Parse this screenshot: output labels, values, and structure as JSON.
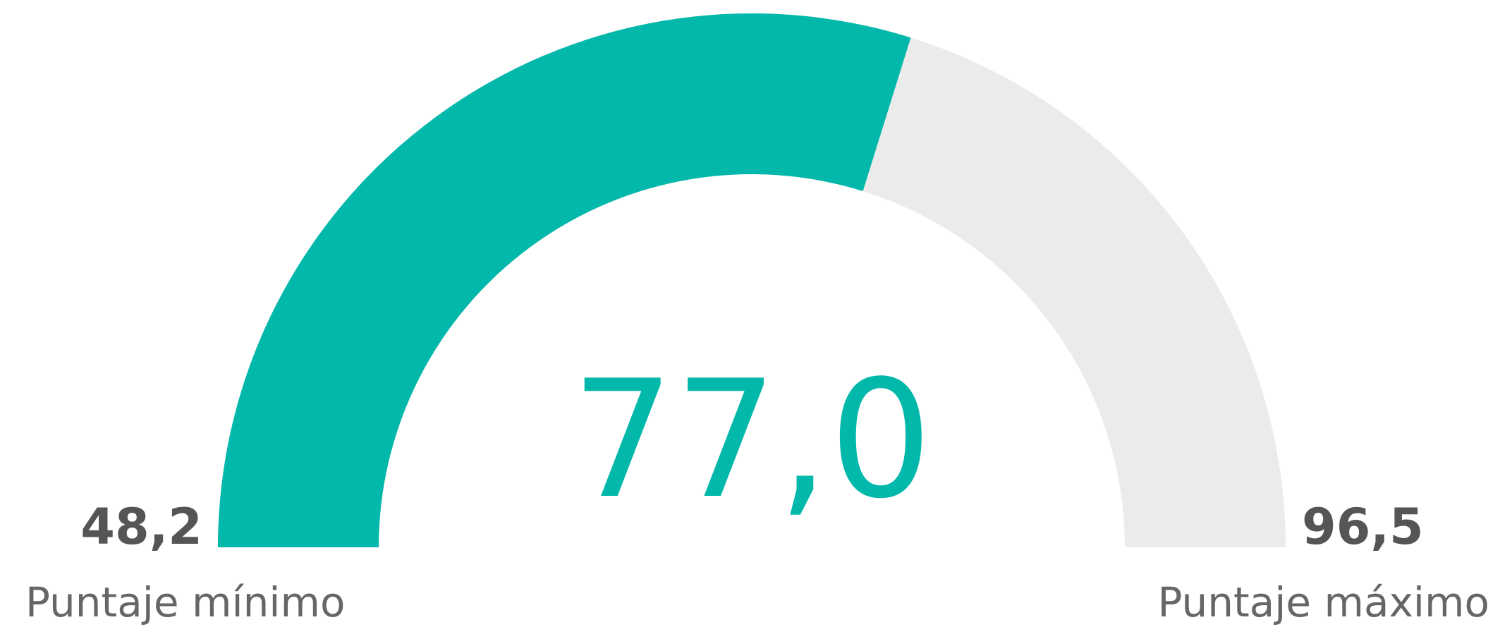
{
  "chart_data": {
    "type": "gauge",
    "value": 77.0,
    "value_label": "77,0",
    "min": {
      "value": 48.2,
      "label": "48,2"
    },
    "max": {
      "value": 96.5,
      "label": "96,5"
    },
    "min_title": "Puntaje mínimo",
    "max_title": "Puntaje máximo",
    "color": "#01b8aa",
    "track_color": "#ebebeb"
  }
}
